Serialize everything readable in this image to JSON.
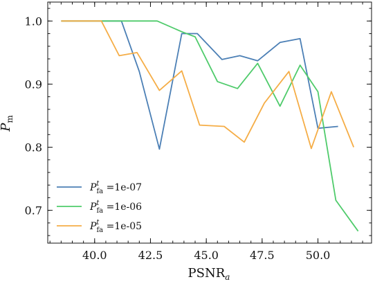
{
  "chart_data": {
    "type": "line",
    "xlabel": "PSNR",
    "xlabel_sub": "a",
    "ylabel": "P",
    "ylabel_sub": "m",
    "xlim": [
      37.9,
      52.4
    ],
    "ylim": [
      0.648,
      1.03
    ],
    "xticks": [
      40.0,
      42.5,
      45.0,
      47.5,
      50.0
    ],
    "xtick_labels": [
      "40.0",
      "42.5",
      "45.0",
      "47.5",
      "50.0"
    ],
    "yticks": [
      0.7,
      0.8,
      0.9,
      1.0
    ],
    "ytick_labels": [
      "0.7",
      "0.8",
      "0.9",
      "1.0"
    ],
    "grid": false,
    "legend_position": "lower-left",
    "series": [
      {
        "name": "P_fa^t =1e-07",
        "label_main": "P",
        "label_sup": "t",
        "label_sub": "fa",
        "label_value": " =1e-07",
        "color": "#4b7fb5",
        "x": [
          38.5,
          39.5,
          40.3,
          41.2,
          42.0,
          42.9,
          43.9,
          44.6,
          45.7,
          46.5,
          47.3,
          48.3,
          49.2,
          50.0,
          50.9
        ],
        "y": [
          1.0,
          1.0,
          1.0,
          1.0,
          0.92,
          0.797,
          0.98,
          0.98,
          0.939,
          0.945,
          0.937,
          0.966,
          0.972,
          0.83,
          0.833
        ]
      },
      {
        "name": "P_fa^t =1e-06",
        "label_main": "P",
        "label_sup": "t",
        "label_sub": "fa",
        "label_value": " =1e-06",
        "color": "#4fcb6b",
        "x": [
          38.5,
          39.5,
          40.3,
          41.3,
          42.8,
          43.9,
          44.5,
          45.5,
          46.4,
          47.3,
          48.3,
          49.2,
          50.0,
          50.8,
          51.8
        ],
        "y": [
          1.0,
          1.0,
          1.0,
          1.0,
          1.0,
          0.983,
          0.975,
          0.904,
          0.893,
          0.933,
          0.865,
          0.93,
          0.888,
          0.716,
          0.667
        ]
      },
      {
        "name": "P_fa^t =1e-05",
        "label_main": "P",
        "label_sup": "t",
        "label_sub": "fa",
        "label_value": " =1e-05",
        "color": "#f5ad46",
        "x": [
          38.5,
          39.5,
          40.3,
          41.1,
          41.9,
          42.9,
          43.9,
          44.7,
          45.8,
          46.7,
          47.6,
          48.7,
          49.7,
          50.6,
          51.6
        ],
        "y": [
          1.0,
          1.0,
          1.0,
          0.945,
          0.95,
          0.89,
          0.921,
          0.835,
          0.833,
          0.808,
          0.87,
          0.92,
          0.798,
          0.888,
          0.8
        ]
      }
    ]
  }
}
